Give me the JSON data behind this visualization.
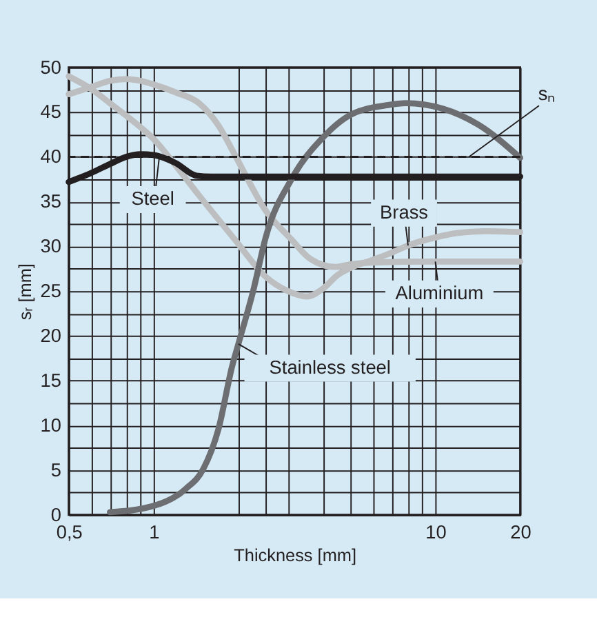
{
  "chart_data": {
    "type": "line",
    "xlabel": "Thickness [mm]",
    "ylabel": "sᵣ [mm]",
    "log": "x",
    "grid": true,
    "line_style": "solid",
    "marker": "none",
    "xlim": [
      0.5,
      20
    ],
    "ylim": [
      0,
      50
    ],
    "xticks": [
      {
        "value": 0.5,
        "label": "0,5"
      },
      {
        "value": 0.6,
        "label": null
      },
      {
        "value": 0.7,
        "label": null
      },
      {
        "value": 0.8,
        "label": null
      },
      {
        "value": 0.9,
        "label": null
      },
      1,
      {
        "value": 2,
        "label": null
      },
      {
        "value": 2.5,
        "label": null
      },
      {
        "value": 3,
        "label": null
      },
      {
        "value": 4,
        "label": null
      },
      {
        "value": 5,
        "label": null
      },
      {
        "value": 6,
        "label": null
      },
      {
        "value": 7,
        "label": null
      },
      {
        "value": 8,
        "label": null
      },
      {
        "value": 9,
        "label": null
      },
      10,
      20
    ],
    "yticks": [
      0,
      {
        "value": 2.5,
        "label": null
      },
      5,
      {
        "value": 7.5,
        "label": null
      },
      10,
      {
        "value": 12.5,
        "label": null
      },
      15,
      {
        "value": 17.5,
        "label": null
      },
      20,
      {
        "value": 22.5,
        "label": null
      },
      25,
      {
        "value": 27.5,
        "label": null
      },
      30,
      {
        "value": 32.5,
        "label": null
      },
      35,
      {
        "value": 37.5,
        "label": null
      },
      40,
      {
        "value": 42.5,
        "label": null
      },
      45,
      {
        "value": 47.5,
        "label": null
      },
      50
    ],
    "series": [
      {
        "color": "#bcbec0",
        "x": [
          0.5,
          0.6,
          0.7,
          0.8,
          0.9,
          1,
          1.2,
          1.45,
          1.7,
          1.96,
          2.5,
          3.1,
          3.6,
          4.4,
          5,
          6,
          10,
          20
        ],
        "values": [
          47,
          47.8,
          48.5,
          48.7,
          48.5,
          48.1,
          47.2,
          46,
          43.5,
          40,
          34,
          30.7,
          28.6,
          27.7,
          28,
          28.2,
          28.3,
          28.3
        ]
      },
      {
        "color": "#bcbec0",
        "x": [
          0.5,
          0.6,
          0.7,
          0.8,
          0.9,
          1,
          1.2,
          1.45,
          1.95,
          2.5,
          3,
          3.5,
          4,
          4.5,
          5,
          6,
          7,
          8,
          10,
          12,
          15,
          20
        ],
        "values": [
          49,
          47.6,
          46,
          44.6,
          43.3,
          42,
          39,
          35.7,
          30.7,
          26.6,
          25,
          24.4,
          25.3,
          26.8,
          27.6,
          28.5,
          29.3,
          30.1,
          31,
          31.5,
          31.7,
          31.6
        ]
      },
      {
        "color": "#6d6e71",
        "x": [
          0.7,
          1,
          1.3,
          1.5,
          1.7,
          1.9,
          2,
          2.26,
          2.5,
          3.1,
          4,
          5,
          6.8,
          7.85,
          10.6,
          14.2,
          20
        ],
        "values": [
          0.3,
          1,
          2.9,
          5.1,
          9.6,
          16.6,
          19.1,
          25.1,
          31,
          37.6,
          42.2,
          44.7,
          45.8,
          46,
          45.4,
          43.6,
          39.9
        ]
      },
      {
        "color": "#231f20",
        "x": [
          0.5,
          0.6,
          0.7,
          0.8,
          0.9,
          1,
          1.2,
          1.42,
          1.6,
          20
        ],
        "values": [
          37.2,
          38.2,
          39.2,
          40,
          40.3,
          40.2,
          39.3,
          37.9,
          37.8,
          37.8
        ]
      }
    ],
    "ref_lines": [
      {
        "axis": "y",
        "value": 40,
        "label": "sₙ",
        "color": "#231f20",
        "line_style": "dashed"
      }
    ],
    "annotations": [
      {
        "text": "Steel",
        "x": 1.05,
        "y": 40.2
      },
      {
        "text": "Brass",
        "x": 8,
        "y": 30.1
      },
      {
        "text": "Aluminium",
        "x": 10,
        "y": 28.3
      },
      {
        "text": "Stainless steel",
        "x": 2,
        "y": 19.1
      }
    ]
  }
}
